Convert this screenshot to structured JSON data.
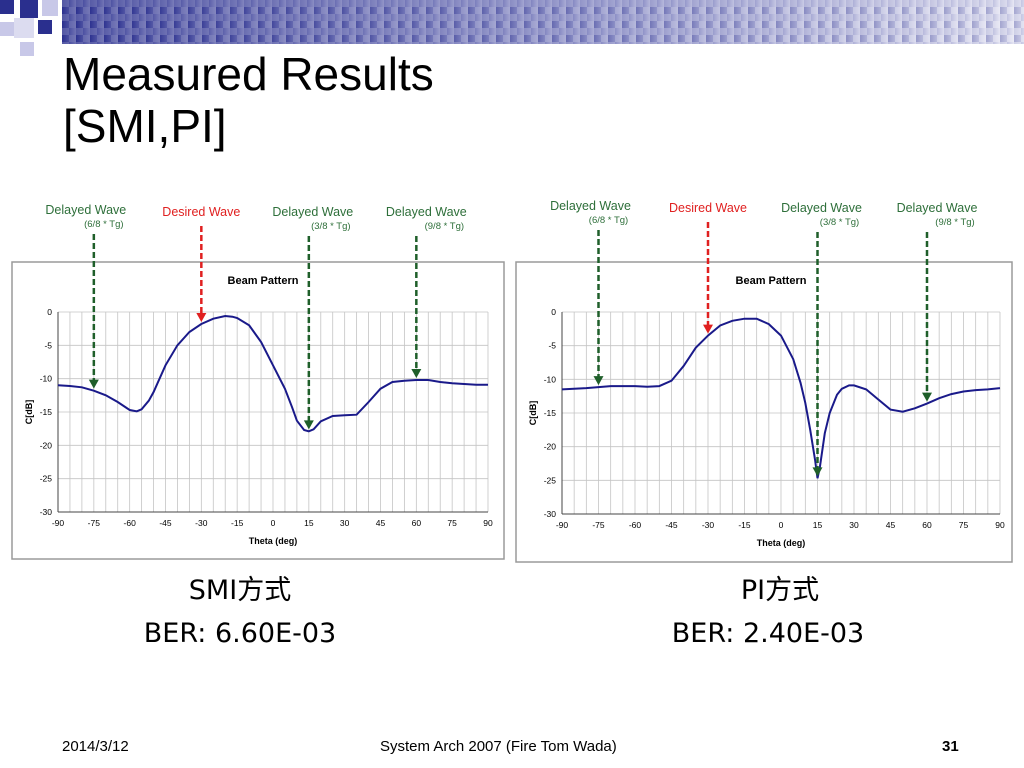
{
  "slide": {
    "title_line1": "Measured Results",
    "title_line2": "[SMI,PI]",
    "footer_date": "2014/3/12",
    "footer_center": "System Arch 2007  (Fire Tom Wada)",
    "page_number": "31",
    "colors": {
      "accent": "#2a2f8e",
      "deco_light": "#c8c8e8",
      "desired_arrow": "#e02020",
      "delayed_arrow": "#1f5f2a",
      "curve": "#1a1a8a"
    }
  },
  "left": {
    "caption_method": "SMI方式",
    "caption_ber": "BER: 6.60E-03"
  },
  "right": {
    "caption_method": "PI方式",
    "caption_ber": "BER: 2.40E-03"
  },
  "chart_data": [
    {
      "type": "line",
      "title": "Beam Pattern",
      "xlabel": "Theta (deg)",
      "ylabel": "C[dB]",
      "xlim": [
        -90,
        90
      ],
      "ylim": [
        -30,
        0
      ],
      "xticks": [
        -90,
        -75,
        -60,
        -45,
        -30,
        -15,
        0,
        15,
        30,
        45,
        60,
        75,
        90
      ],
      "yticks": [
        0,
        -5,
        -10,
        -15,
        -20,
        -25,
        -30
      ],
      "grid": true,
      "x": [
        -90,
        -85,
        -80,
        -75,
        -70,
        -65,
        -60,
        -57,
        -55,
        -52,
        -50,
        -45,
        -40,
        -35,
        -30,
        -25,
        -20,
        -17,
        -15,
        -10,
        -5,
        0,
        5,
        8,
        10,
        13,
        15,
        17,
        20,
        25,
        30,
        35,
        40,
        45,
        50,
        55,
        60,
        65,
        70,
        75,
        80,
        85,
        90
      ],
      "y": [
        -11,
        -11.1,
        -11.3,
        -11.8,
        -12.5,
        -13.5,
        -14.7,
        -14.9,
        -14.6,
        -13.3,
        -12,
        -8,
        -5,
        -3,
        -1.8,
        -1,
        -0.6,
        -0.7,
        -0.9,
        -2,
        -4.5,
        -8,
        -11.5,
        -14.3,
        -16.3,
        -17.7,
        -17.9,
        -17.6,
        -16.4,
        -15.6,
        -15.5,
        -15.4,
        -13.5,
        -11.5,
        -10.5,
        -10.3,
        -10.2,
        -10.2,
        -10.5,
        -10.7,
        -10.8,
        -10.9,
        -10.9
      ],
      "annotations": [
        {
          "label": "Delayed Wave",
          "sublabel": "(6/8 * Tg)",
          "theta": -75,
          "kind": "delayed"
        },
        {
          "label": "Desired Wave",
          "sublabel": "",
          "theta": -30,
          "kind": "desired"
        },
        {
          "label": "Delayed Wave",
          "sublabel": "(3/8 * Tg)",
          "theta": 15,
          "kind": "delayed"
        },
        {
          "label": "Delayed Wave",
          "sublabel": "(9/8 * Tg)",
          "theta": 60,
          "kind": "delayed"
        }
      ]
    },
    {
      "type": "line",
      "title": "Beam Pattern",
      "xlabel": "Theta (deg)",
      "ylabel": "C[dB]",
      "xlim": [
        -90,
        90
      ],
      "ylim": [
        -30,
        0
      ],
      "xticks": [
        -90,
        -75,
        -60,
        -45,
        -30,
        -15,
        0,
        15,
        30,
        45,
        60,
        75,
        90
      ],
      "yticks": [
        0,
        -5,
        -10,
        -15,
        -20,
        -25,
        -30
      ],
      "grid": true,
      "x": [
        -90,
        -80,
        -70,
        -60,
        -55,
        -50,
        -45,
        -40,
        -35,
        -30,
        -25,
        -20,
        -15,
        -10,
        -5,
        0,
        5,
        8,
        10,
        12,
        14,
        15,
        16,
        18,
        20,
        23,
        25,
        28,
        30,
        35,
        40,
        45,
        50,
        55,
        60,
        65,
        70,
        75,
        80,
        85,
        90
      ],
      "y": [
        -11.5,
        -11.3,
        -11,
        -11,
        -11.1,
        -11,
        -10.2,
        -8,
        -5.3,
        -3.5,
        -2,
        -1.3,
        -1,
        -1,
        -1.8,
        -3.5,
        -7,
        -10.5,
        -13.5,
        -17.5,
        -22,
        -24.7,
        -23,
        -18,
        -15,
        -12.3,
        -11.4,
        -10.9,
        -10.9,
        -11.5,
        -13,
        -14.5,
        -14.8,
        -14.3,
        -13.6,
        -12.8,
        -12.2,
        -11.8,
        -11.6,
        -11.5,
        -11.3
      ],
      "annotations": [
        {
          "label": "Delayed Wave",
          "sublabel": "(6/8 * Tg)",
          "theta": -75,
          "kind": "delayed"
        },
        {
          "label": "Desired Wave",
          "sublabel": "",
          "theta": -30,
          "kind": "desired"
        },
        {
          "label": "Delayed Wave",
          "sublabel": "(3/8 * Tg)",
          "theta": 15,
          "kind": "delayed"
        },
        {
          "label": "Delayed Wave",
          "sublabel": "(9/8 * Tg)",
          "theta": 60,
          "kind": "delayed"
        }
      ]
    }
  ]
}
